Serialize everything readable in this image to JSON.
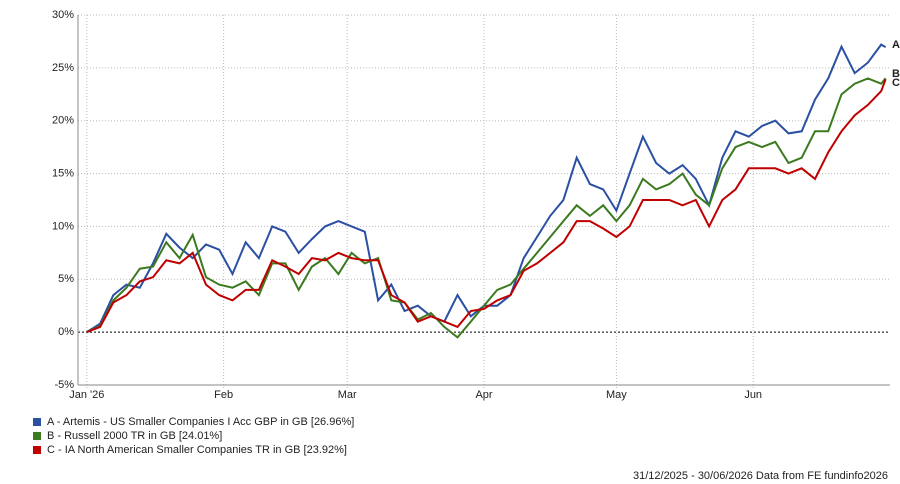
{
  "chart_data": {
    "type": "line",
    "x": [
      0,
      3,
      6,
      9,
      12,
      15,
      18,
      21,
      24,
      27,
      30,
      33,
      36,
      39,
      42,
      45,
      48,
      51,
      54,
      57,
      60,
      63,
      66,
      69,
      72,
      75,
      78,
      81,
      84,
      87,
      90,
      93,
      96,
      99,
      102,
      105,
      108,
      111,
      114,
      117,
      120,
      123,
      126,
      129,
      132,
      135,
      138,
      141,
      144,
      147,
      150,
      153,
      156,
      159,
      162,
      165,
      168,
      171,
      174,
      177,
      180,
      181
    ],
    "series": [
      {
        "name": "A - Artemis - US Smaller Companies I Acc GBP in GB [26.96%]",
        "end_label": "A",
        "color": "#2b4fa3",
        "values": [
          0,
          0.8,
          3.5,
          4.5,
          4.2,
          6.5,
          9.3,
          8.0,
          7.0,
          8.3,
          7.8,
          5.5,
          8.5,
          7.0,
          10.0,
          9.5,
          7.5,
          8.8,
          10.0,
          10.5,
          10.0,
          9.5,
          3.0,
          4.5,
          2.0,
          2.5,
          1.5,
          1.0,
          3.5,
          1.5,
          2.5,
          2.5,
          3.5,
          7.0,
          9.0,
          11.0,
          12.5,
          16.5,
          14.0,
          13.5,
          11.5,
          15.0,
          18.5,
          16.0,
          15.0,
          15.8,
          14.5,
          12.0,
          16.5,
          19.0,
          18.5,
          19.5,
          20.0,
          18.8,
          19.0,
          22.0,
          24.0,
          27.0,
          24.5,
          25.5,
          27.2,
          26.96
        ]
      },
      {
        "name": "B - Russell 2000 TR in GB [24.01%]",
        "end_label": "B",
        "color": "#3b7a1f",
        "values": [
          0,
          0.6,
          3.0,
          4.2,
          6.0,
          6.2,
          8.5,
          7.0,
          9.2,
          5.2,
          4.5,
          4.2,
          4.8,
          3.5,
          6.5,
          6.5,
          4.0,
          6.2,
          7.0,
          5.5,
          7.5,
          6.5,
          7.0,
          3.0,
          2.8,
          1.2,
          1.8,
          0.5,
          -0.5,
          1.0,
          2.5,
          4.0,
          4.5,
          6.0,
          7.5,
          9.0,
          10.5,
          12.0,
          11.0,
          12.0,
          10.5,
          12.0,
          14.5,
          13.5,
          14.0,
          15.0,
          13.0,
          12.0,
          15.5,
          17.5,
          18.0,
          17.5,
          18.0,
          16.0,
          16.5,
          19.0,
          19.0,
          22.5,
          23.5,
          24.0,
          23.5,
          24.01
        ]
      },
      {
        "name": "C - IA North American Smaller Companies TR in GB [23.92%]",
        "end_label": "C",
        "color": "#c00000",
        "values": [
          0,
          0.5,
          2.8,
          3.5,
          4.8,
          5.2,
          6.8,
          6.5,
          7.5,
          4.5,
          3.5,
          3.0,
          4.0,
          4.0,
          6.8,
          6.2,
          5.5,
          7.0,
          6.8,
          7.5,
          7.0,
          6.8,
          6.8,
          3.5,
          2.8,
          1.0,
          1.5,
          1.0,
          0.5,
          2.0,
          2.2,
          3.0,
          3.5,
          5.8,
          6.5,
          7.5,
          8.5,
          10.5,
          10.5,
          9.8,
          9.0,
          10.0,
          12.5,
          12.5,
          12.5,
          12.0,
          12.5,
          10.0,
          12.5,
          13.5,
          15.5,
          15.5,
          15.5,
          15.0,
          15.5,
          14.5,
          17.0,
          19.0,
          20.5,
          21.5,
          22.8,
          23.92
        ]
      }
    ],
    "xlim": [
      -2,
      182
    ],
    "xticks": [
      {
        "value": 0,
        "label": "Jan '26"
      },
      {
        "value": 31,
        "label": "Feb"
      },
      {
        "value": 59,
        "label": "Mar"
      },
      {
        "value": 90,
        "label": "Apr"
      },
      {
        "value": 120,
        "label": "May"
      },
      {
        "value": 151,
        "label": "Jun"
      }
    ],
    "ylim": [
      -5,
      30
    ],
    "yticks": [
      {
        "value": -5,
        "label": "-5%"
      },
      {
        "value": 0,
        "label": "0%"
      },
      {
        "value": 5,
        "label": "5%"
      },
      {
        "value": 10,
        "label": "10%"
      },
      {
        "value": 15,
        "label": "15%"
      },
      {
        "value": 20,
        "label": "20%"
      },
      {
        "value": 25,
        "label": "25%"
      },
      {
        "value": 30,
        "label": "30%"
      }
    ],
    "grid": true,
    "footer": "31/12/2025 - 30/06/2026 Data from FE fundinfo2026"
  }
}
